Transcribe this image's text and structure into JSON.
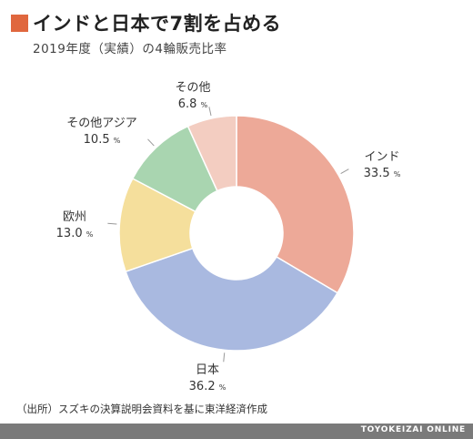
{
  "title": "インドと日本で7割を占める",
  "subtitle": "2019年度（実績）の4輪販売比率",
  "source": "（出所）スズキの決算説明会資料を基に東洋経済作成",
  "brand": "TOYOKEIZAI ONLINE",
  "colors": {
    "title_marker": "#e0673e",
    "footer": "#7a7a7a"
  },
  "chart_data": {
    "type": "pie",
    "donut": true,
    "unit": "%",
    "slices": [
      {
        "name": "インド",
        "value": 33.5,
        "value_label": "33.5",
        "color": "#eda998"
      },
      {
        "name": "日本",
        "value": 36.2,
        "value_label": "36.2",
        "color": "#a9b9e0"
      },
      {
        "name": "欧州",
        "value": 13.0,
        "value_label": "13.0",
        "color": "#f5df9c"
      },
      {
        "name": "その他アジア",
        "value": 10.5,
        "value_label": "10.5",
        "color": "#a9d5b0"
      },
      {
        "name": "その他",
        "value": 6.8,
        "value_label": "6.8",
        "color": "#f3cdc1"
      }
    ]
  }
}
